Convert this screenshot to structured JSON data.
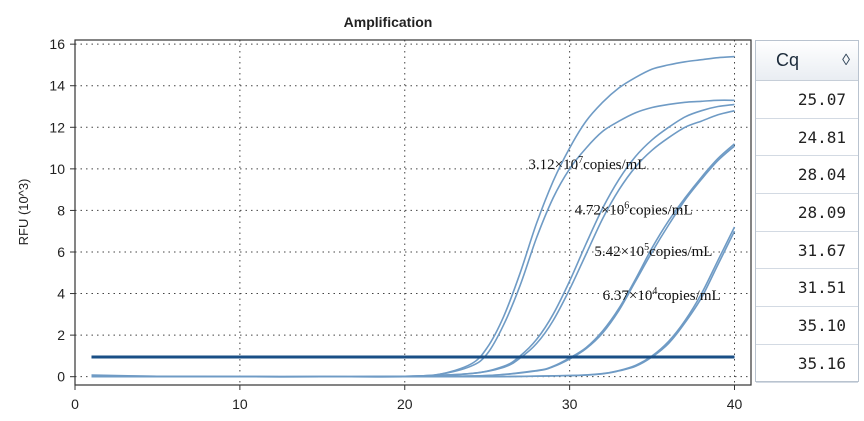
{
  "chart_data": {
    "type": "line",
    "title": "Amplification",
    "xlabel": "",
    "ylabel": "RFU (10^3)",
    "xlim": [
      0,
      41
    ],
    "ylim": [
      -0.4,
      16.2
    ],
    "xticks": [
      0,
      10,
      20,
      30,
      40
    ],
    "yticks": [
      0,
      2,
      4,
      6,
      8,
      10,
      12,
      14,
      16
    ],
    "grid": true,
    "threshold": 0.95,
    "annotations": [
      {
        "base": "3.12×10",
        "exp": "7",
        "unit": "copies/mL",
        "x": 27.5,
        "y": 10.0
      },
      {
        "base": "4.72×10",
        "exp": "6",
        "unit": "copies/mL",
        "x": 30.3,
        "y": 7.8
      },
      {
        "base": "5.42×10",
        "exp": "5",
        "unit": "copies/mL",
        "x": 31.5,
        "y": 5.8
      },
      {
        "base": "6.37×10",
        "exp": "4",
        "unit": "copies/mL",
        "x": 32.0,
        "y": 3.7
      }
    ],
    "series": [
      {
        "x": [
          1,
          5,
          10,
          15,
          20,
          22,
          24,
          25,
          26,
          27,
          28,
          29,
          30,
          31,
          32,
          33,
          34,
          35,
          36,
          37,
          38,
          39,
          40
        ],
        "y": [
          0.08,
          0.02,
          0.0,
          0.0,
          0.02,
          0.1,
          0.6,
          1.4,
          2.9,
          5.0,
          7.4,
          9.4,
          11.0,
          12.3,
          13.2,
          13.9,
          14.4,
          14.8,
          15.0,
          15.15,
          15.25,
          15.35,
          15.4
        ]
      },
      {
        "x": [
          1,
          5,
          10,
          15,
          20,
          22,
          24,
          25,
          26,
          27,
          28,
          29,
          30,
          31,
          32,
          33,
          34,
          35,
          36,
          37,
          38,
          39,
          40
        ],
        "y": [
          0.05,
          0.02,
          0.0,
          0.0,
          0.02,
          0.1,
          0.5,
          1.1,
          2.5,
          4.4,
          6.7,
          8.6,
          10.0,
          11.0,
          11.8,
          12.3,
          12.7,
          12.95,
          13.1,
          13.2,
          13.25,
          13.3,
          13.3
        ]
      },
      {
        "x": [
          1,
          5,
          10,
          15,
          20,
          24,
          26,
          27,
          28,
          29,
          30,
          31,
          32,
          33,
          34,
          35,
          36,
          37,
          38,
          39,
          40
        ],
        "y": [
          0.0,
          0.0,
          0.0,
          0.0,
          0.02,
          0.15,
          0.5,
          1.0,
          1.8,
          3.0,
          4.6,
          6.4,
          8.1,
          9.5,
          10.6,
          11.4,
          12.0,
          12.5,
          12.8,
          13.0,
          13.1
        ]
      },
      {
        "x": [
          1,
          5,
          10,
          15,
          20,
          24,
          26,
          27,
          28,
          29,
          30,
          31,
          32,
          33,
          34,
          35,
          36,
          37,
          38,
          39,
          40
        ],
        "y": [
          0.0,
          0.0,
          0.0,
          0.0,
          0.02,
          0.15,
          0.45,
          0.9,
          1.6,
          2.7,
          4.2,
          5.9,
          7.6,
          9.0,
          10.1,
          10.9,
          11.5,
          12.0,
          12.3,
          12.6,
          12.8
        ]
      },
      {
        "x": [
          1,
          5,
          10,
          15,
          20,
          25,
          28,
          29,
          30,
          31,
          32,
          33,
          34,
          35,
          36,
          37,
          38,
          39,
          40
        ],
        "y": [
          0.0,
          0.0,
          0.0,
          0.0,
          0.0,
          0.05,
          0.3,
          0.5,
          0.9,
          1.4,
          2.2,
          3.3,
          4.7,
          6.2,
          7.5,
          8.6,
          9.6,
          10.5,
          11.2
        ]
      },
      {
        "x": [
          1,
          5,
          10,
          15,
          20,
          25,
          28,
          29,
          30,
          31,
          32,
          33,
          34,
          35,
          36,
          37,
          38,
          39,
          40
        ],
        "y": [
          0.0,
          0.0,
          0.0,
          0.0,
          0.0,
          0.05,
          0.28,
          0.48,
          0.85,
          1.35,
          2.1,
          3.2,
          4.6,
          6.0,
          7.3,
          8.5,
          9.5,
          10.4,
          11.1
        ]
      },
      {
        "x": [
          1,
          5,
          10,
          15,
          20,
          25,
          30,
          32,
          33,
          34,
          35,
          36,
          37,
          38,
          39,
          40
        ],
        "y": [
          0.0,
          0.0,
          0.0,
          0.0,
          0.0,
          0.0,
          0.05,
          0.15,
          0.3,
          0.55,
          1.0,
          1.7,
          2.7,
          4.0,
          5.6,
          7.2
        ]
      },
      {
        "x": [
          1,
          5,
          10,
          15,
          20,
          25,
          30,
          32,
          33,
          34,
          35,
          36,
          37,
          38,
          39,
          40
        ],
        "y": [
          0.0,
          0.0,
          0.0,
          0.0,
          0.0,
          0.0,
          0.05,
          0.14,
          0.28,
          0.5,
          0.95,
          1.6,
          2.6,
          3.8,
          5.4,
          7.0
        ]
      }
    ],
    "colors": {
      "line": "#6f9bc5",
      "threshold": "#1a4f86",
      "axis": "#333333"
    }
  },
  "cq_table": {
    "header": "Cq",
    "sort_icon": "sort-icon",
    "sort_glyph": "◊",
    "values": [
      "25.07",
      "24.81",
      "28.04",
      "28.09",
      "31.67",
      "31.51",
      "35.10",
      "35.16"
    ]
  }
}
